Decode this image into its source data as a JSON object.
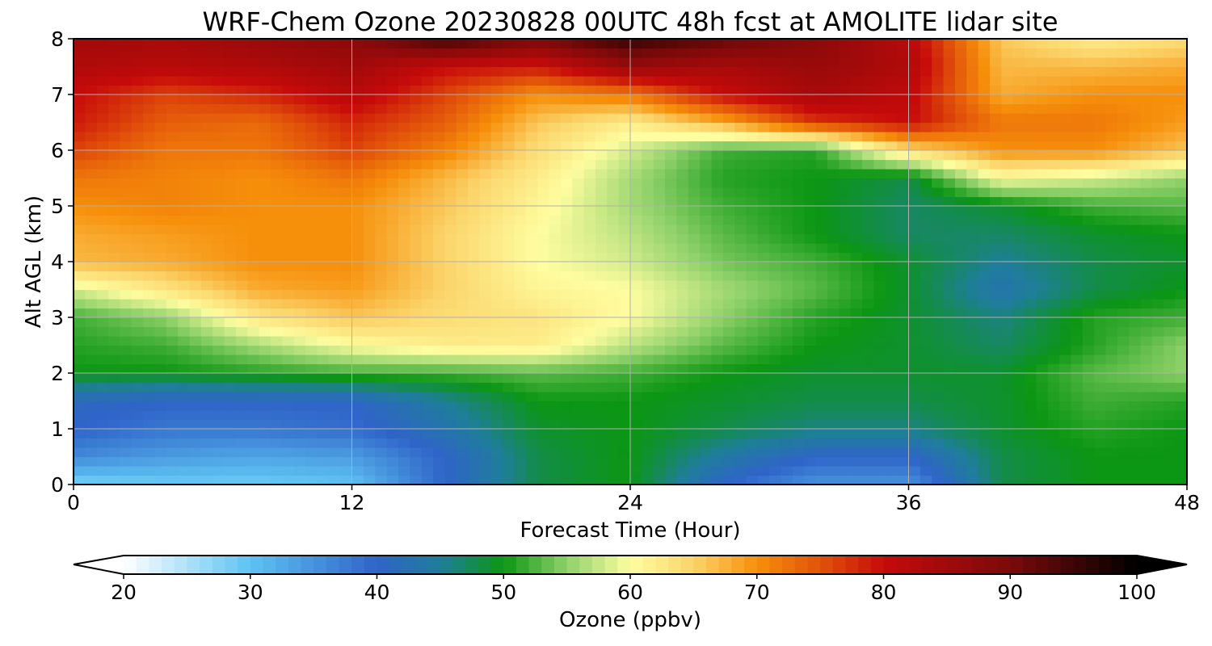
{
  "chart_data": {
    "type": "heatmap",
    "title": "WRF-Chem Ozone  20230828 00UTC 48h fcst at AMOLITE lidar site",
    "xlabel": "Forecast Time (Hour)",
    "ylabel": "Alt AGL (km)",
    "xlim": [
      0,
      48
    ],
    "ylim": [
      0,
      8
    ],
    "x_ticks": [
      "0",
      "12",
      "24",
      "36",
      "48"
    ],
    "y_ticks": [
      "0",
      "1",
      "2",
      "3",
      "4",
      "5",
      "6",
      "7",
      "8"
    ],
    "grid": true,
    "x": [
      0,
      4,
      8,
      12,
      16,
      20,
      24,
      28,
      32,
      36,
      40,
      44,
      48
    ],
    "y": [
      0,
      0.5,
      1,
      1.5,
      2,
      2.5,
      3,
      3.5,
      4,
      4.5,
      5,
      5.5,
      6,
      6.5,
      7,
      7.5,
      8
    ],
    "z": [
      [
        28,
        29,
        29,
        30,
        40,
        48,
        50,
        40,
        35,
        35,
        48,
        50,
        50
      ],
      [
        36,
        34,
        33,
        34,
        40,
        48,
        50,
        44,
        40,
        40,
        48,
        50,
        50
      ],
      [
        40,
        38,
        38,
        39,
        43,
        49,
        50,
        48,
        46,
        46,
        49,
        51,
        50
      ],
      [
        41,
        40,
        40,
        40,
        45,
        50,
        50,
        49,
        48,
        48,
        49,
        52,
        51
      ],
      [
        50,
        50,
        51,
        52,
        52,
        53,
        52,
        50,
        49,
        49,
        49,
        53,
        55
      ],
      [
        51,
        52,
        56,
        60,
        62,
        62,
        57,
        53,
        50,
        49,
        47,
        51,
        55
      ],
      [
        52,
        55,
        63,
        66,
        64,
        63,
        60,
        55,
        51,
        49,
        46,
        51,
        52
      ],
      [
        58,
        63,
        68,
        69,
        65,
        61,
        60,
        56,
        53,
        49,
        43,
        48,
        50
      ],
      [
        67,
        68,
        70,
        70,
        65,
        60,
        58,
        54,
        52,
        49,
        45,
        48,
        49
      ],
      [
        68,
        69,
        70,
        70,
        65,
        60,
        57,
        53,
        50,
        47,
        47,
        49,
        50
      ],
      [
        70,
        71,
        70,
        70,
        66,
        61,
        56,
        52,
        50,
        47,
        49,
        52,
        53
      ],
      [
        72,
        71,
        70,
        72,
        67,
        62,
        56,
        51,
        50,
        48,
        60,
        58,
        55
      ],
      [
        76,
        72,
        72,
        76,
        71,
        64,
        58,
        52,
        51,
        64,
        70,
        70,
        66
      ],
      [
        79,
        74,
        73,
        78,
        74,
        66,
        62,
        68,
        77,
        80,
        72,
        72,
        69
      ],
      [
        80,
        76,
        78,
        82,
        76,
        70,
        72,
        80,
        84,
        81,
        68,
        70,
        70
      ],
      [
        83,
        82,
        83,
        85,
        80,
        79,
        86,
        84,
        86,
        83,
        67,
        67,
        68
      ],
      [
        85,
        84,
        86,
        88,
        95,
        90,
        96,
        92,
        88,
        82,
        66,
        62,
        64
      ]
    ],
    "colorbar": {
      "label": "Ozone  (ppbv)",
      "min": 20,
      "max": 100,
      "ticks": [
        "20",
        "30",
        "40",
        "50",
        "60",
        "70",
        "80",
        "90",
        "100"
      ],
      "extend": "both",
      "stops": [
        {
          "v": 20,
          "color": "#ffffff"
        },
        {
          "v": 30,
          "color": "#5ec3f2"
        },
        {
          "v": 40,
          "color": "#2f64c8"
        },
        {
          "v": 45,
          "color": "#1f7e9a"
        },
        {
          "v": 50,
          "color": "#0b9613"
        },
        {
          "v": 55,
          "color": "#8fd16a"
        },
        {
          "v": 60,
          "color": "#fefda0"
        },
        {
          "v": 65,
          "color": "#fbd46a"
        },
        {
          "v": 70,
          "color": "#f68f0a"
        },
        {
          "v": 75,
          "color": "#e2520a"
        },
        {
          "v": 80,
          "color": "#c70a0a"
        },
        {
          "v": 90,
          "color": "#7a0a0a"
        },
        {
          "v": 100,
          "color": "#000000"
        }
      ]
    }
  }
}
